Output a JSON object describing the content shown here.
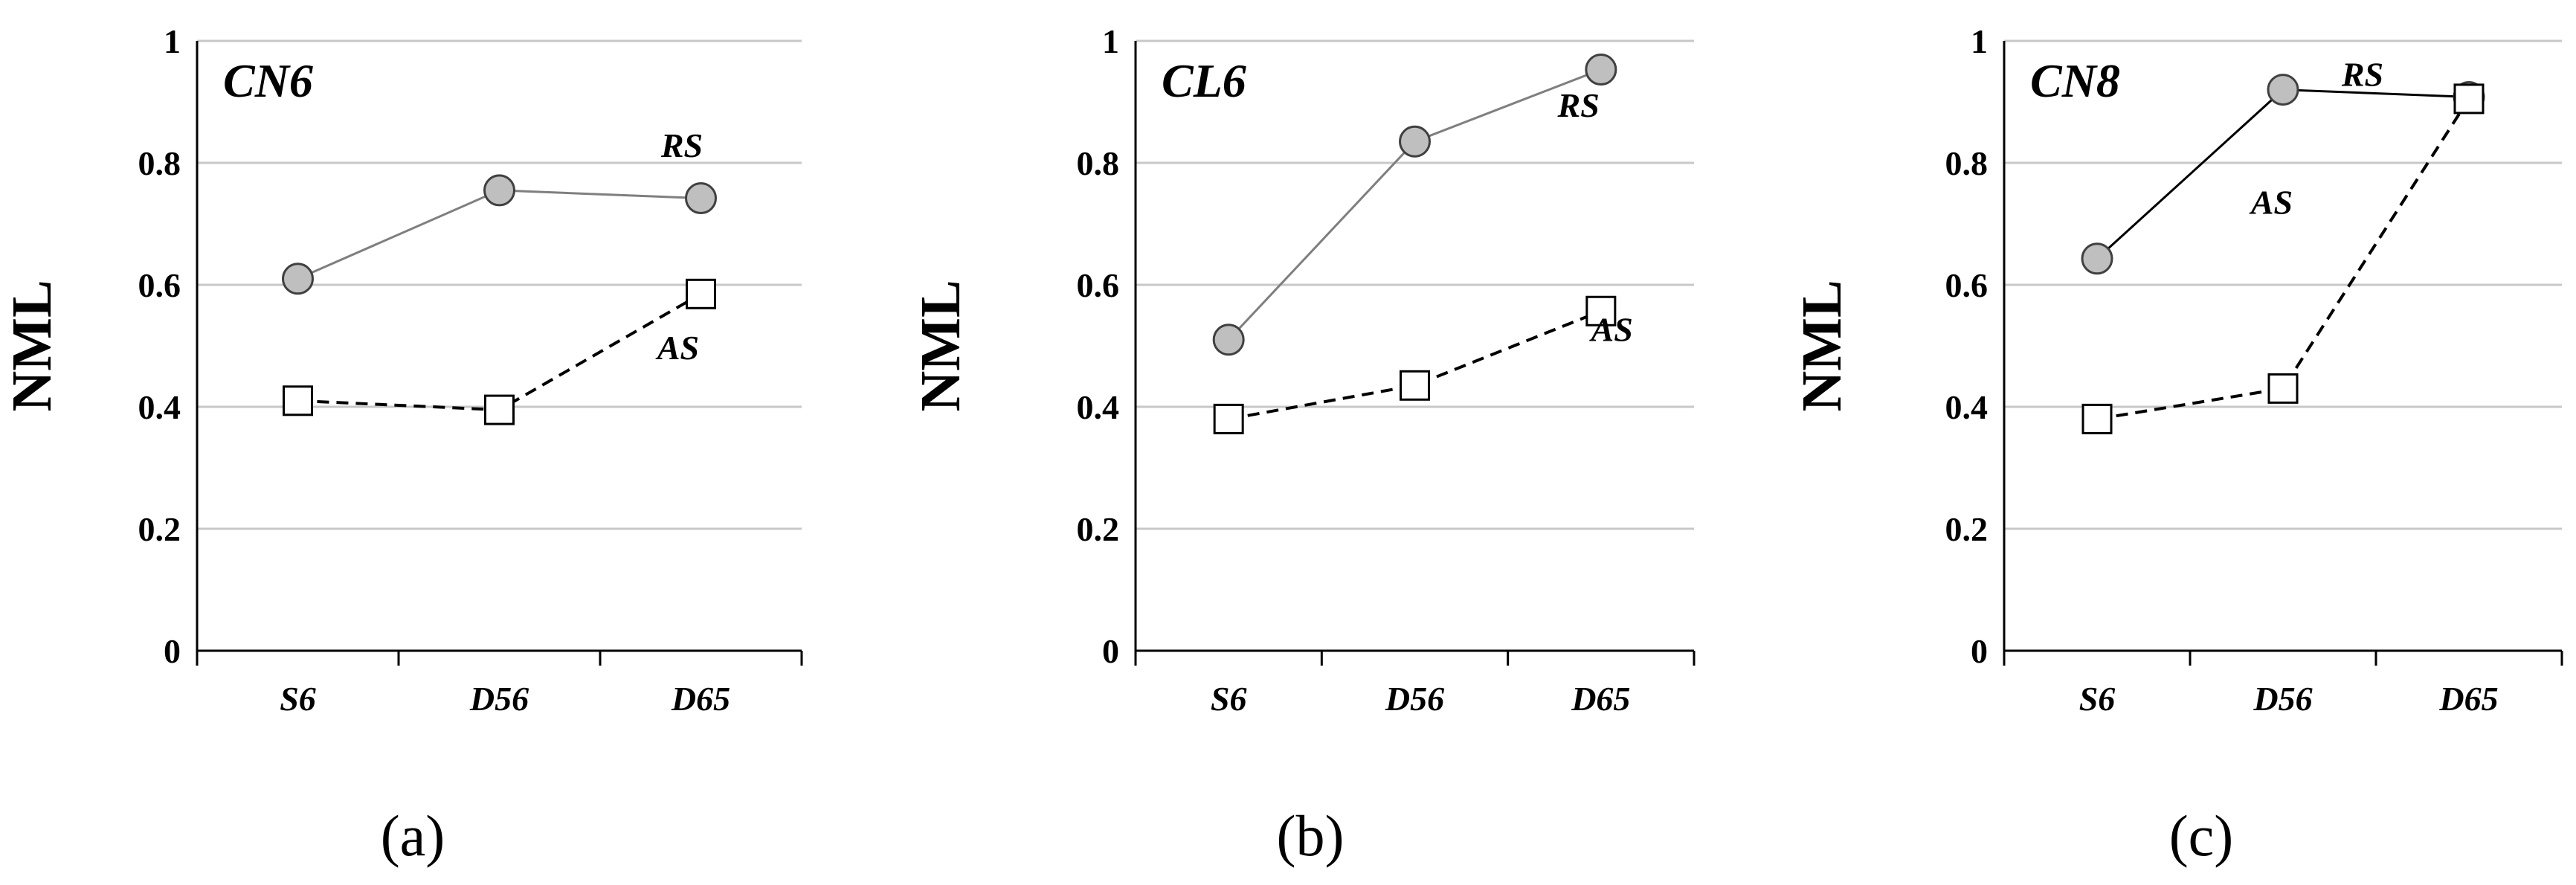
{
  "chart_data": [
    {
      "type": "line",
      "title": "CN6",
      "caption": "(a)",
      "ylabel": "NML",
      "ylim": [
        0,
        1
      ],
      "yticks": [
        "0",
        "0.2",
        "0.4",
        "0.6",
        "0.8",
        "1"
      ],
      "categories": [
        "S6",
        "D56",
        "D65"
      ],
      "grid": true,
      "series": [
        {
          "name": "RS",
          "values": [
            0.61,
            0.755,
            0.742
          ],
          "marker": "circle",
          "line": "solid",
          "color": "#7f7f7f",
          "fill": "#bfbfbf"
        },
        {
          "name": "AS",
          "values": [
            0.41,
            0.395,
            0.585
          ],
          "marker": "square",
          "line": "dashed",
          "color": "#000000",
          "fill": "#ffffff"
        }
      ]
    },
    {
      "type": "line",
      "title": "CL6",
      "caption": "(b)",
      "ylabel": "NML",
      "ylim": [
        0,
        1
      ],
      "yticks": [
        "0",
        "0.2",
        "0.4",
        "0.6",
        "0.8",
        "1"
      ],
      "categories": [
        "S6",
        "D56",
        "D65"
      ],
      "grid": true,
      "series": [
        {
          "name": "RS",
          "values": [
            0.51,
            0.835,
            0.953
          ],
          "marker": "circle",
          "line": "solid",
          "color": "#7f7f7f",
          "fill": "#bfbfbf"
        },
        {
          "name": "AS",
          "values": [
            0.38,
            0.435,
            0.557
          ],
          "marker": "square",
          "line": "dashed",
          "color": "#000000",
          "fill": "#ffffff"
        }
      ]
    },
    {
      "type": "line",
      "title": "CN8",
      "caption": "(c)",
      "ylabel": "NML",
      "ylim": [
        0,
        1
      ],
      "yticks": [
        "0",
        "0.2",
        "0.4",
        "0.6",
        "0.8",
        "1"
      ],
      "categories": [
        "S6",
        "D56",
        "D65"
      ],
      "grid": true,
      "series": [
        {
          "name": "RS",
          "values": [
            0.643,
            0.92,
            0.908
          ],
          "marker": "circle",
          "line": "solid",
          "color": "#000000",
          "fill": "#bfbfbf"
        },
        {
          "name": "AS",
          "values": [
            0.38,
            0.43,
            0.905
          ],
          "marker": "square",
          "line": "dashed",
          "color": "#000000",
          "fill": "#ffffff"
        }
      ]
    }
  ]
}
